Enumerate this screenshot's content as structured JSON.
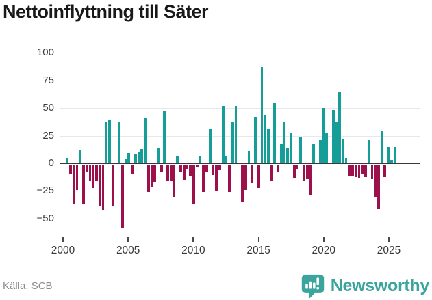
{
  "title": "Nettoinflyttning till Säter",
  "source": "Källa: SCB",
  "brand": {
    "name": "Newsworthy"
  },
  "colors": {
    "positive": "#149E97",
    "negative": "#9C104B",
    "grid": "#E8E8EA",
    "zero_line": "#3A3A3A",
    "title": "#191919",
    "axis_text": "#3C3C3C",
    "source_text": "#8C8C8C",
    "brand_teal": "#3AA49D",
    "background": "#FFFFFF"
  },
  "chart_data": {
    "type": "bar",
    "title": "Nettoinflyttning till Säter",
    "xlabel": "",
    "ylabel": "",
    "frequency": "quarterly",
    "start": "2000Q1",
    "end": "2025Q3",
    "ylim": [
      -65,
      107
    ],
    "y_ticks": [
      100,
      75,
      50,
      25,
      0,
      -25,
      -50
    ],
    "x_ticks": [
      2000,
      2005,
      2010,
      2015,
      2020,
      2025
    ],
    "grid": "horizontal",
    "legend": "none",
    "series": [
      {
        "year": 2000,
        "q": [
          0,
          5,
          -8,
          -35
        ]
      },
      {
        "year": 2001,
        "q": [
          -23,
          12,
          -36,
          -6
        ]
      },
      {
        "year": 2002,
        "q": [
          -15,
          -21,
          -15,
          -38
        ]
      },
      {
        "year": 2003,
        "q": [
          -41,
          38,
          39,
          -38
        ]
      },
      {
        "year": 2004,
        "q": [
          0,
          38,
          -57,
          4
        ]
      },
      {
        "year": 2005,
        "q": [
          9,
          -8,
          8,
          10
        ]
      },
      {
        "year": 2006,
        "q": [
          13,
          41,
          -25,
          -20
        ]
      },
      {
        "year": 2007,
        "q": [
          -16,
          14,
          -6,
          47
        ]
      },
      {
        "year": 2008,
        "q": [
          -15,
          -15,
          -29,
          6
        ]
      },
      {
        "year": 2009,
        "q": [
          -7,
          -14,
          -4,
          -10
        ]
      },
      {
        "year": 2010,
        "q": [
          -36,
          -2,
          6,
          -25
        ]
      },
      {
        "year": 2011,
        "q": [
          -7,
          31,
          -9,
          -24
        ]
      },
      {
        "year": 2012,
        "q": [
          -5,
          52,
          6,
          -25
        ]
      },
      {
        "year": 2013,
        "q": [
          38,
          52,
          0,
          -34
        ]
      },
      {
        "year": 2014,
        "q": [
          -23,
          11,
          -17,
          42
        ]
      },
      {
        "year": 2015,
        "q": [
          -21,
          87,
          44,
          31
        ]
      },
      {
        "year": 2016,
        "q": [
          -15,
          55,
          -6,
          18
        ]
      },
      {
        "year": 2017,
        "q": [
          37,
          14,
          27,
          -12
        ]
      },
      {
        "year": 2018,
        "q": [
          -4,
          24,
          -15,
          -13
        ]
      },
      {
        "year": 2019,
        "q": [
          -27,
          18,
          0,
          21
        ]
      },
      {
        "year": 2020,
        "q": [
          50,
          27,
          0,
          48
        ]
      },
      {
        "year": 2021,
        "q": [
          37,
          65,
          22,
          5
        ]
      },
      {
        "year": 2022,
        "q": [
          -10,
          -10,
          -11,
          -12
        ]
      },
      {
        "year": 2023,
        "q": [
          -8,
          -11,
          21,
          -13
        ]
      },
      {
        "year": 2024,
        "q": [
          -30,
          -40,
          29,
          -11
        ]
      },
      {
        "year": 2025,
        "q": [
          15,
          3,
          15
        ]
      }
    ]
  }
}
